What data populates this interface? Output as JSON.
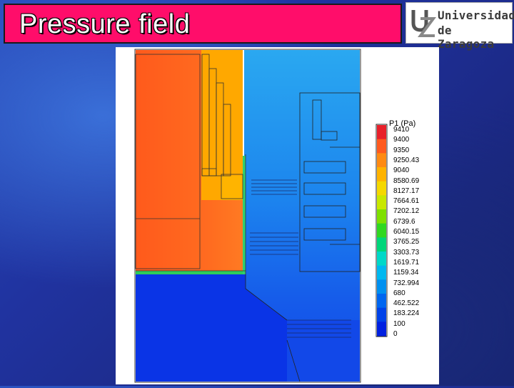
{
  "slide": {
    "title": "Pressure field",
    "colors": {
      "title_bar": "#ff0d6a",
      "background": "#2033a0"
    }
  },
  "logo": {
    "line1": "Universidad",
    "line2": "de Zaragoza",
    "icon": "uz-monogram-icon"
  },
  "legend": {
    "title": "P1 (Pa)",
    "levels": [
      "9410",
      "9400",
      "9350",
      "9250.43",
      "9040",
      "8580.69",
      "8127.17",
      "7664.61",
      "7202.12",
      "6739.6",
      "6040.15",
      "3765.25",
      "3303.73",
      "1619.71",
      "1159.34",
      "732.994",
      "680",
      "462.522",
      "183.224",
      "100",
      "0"
    ],
    "colormap": [
      "#e8202a",
      "#ff5a1e",
      "#ff8a12",
      "#ffb300",
      "#f5d800",
      "#c8e800",
      "#7ee000",
      "#30d820",
      "#00d67a",
      "#00d8c8",
      "#00b8f0",
      "#0090f0",
      "#0066f0",
      "#0042e8",
      "#0020e0"
    ]
  },
  "field": {
    "colors": {
      "high_pressure": "#ff6a20",
      "mid_pressure": "#ffa000",
      "low_upper": "#28a8f0",
      "low_mid": "#1d80ee",
      "low_lower": "#1450ea",
      "lowest": "#0830e6"
    }
  }
}
